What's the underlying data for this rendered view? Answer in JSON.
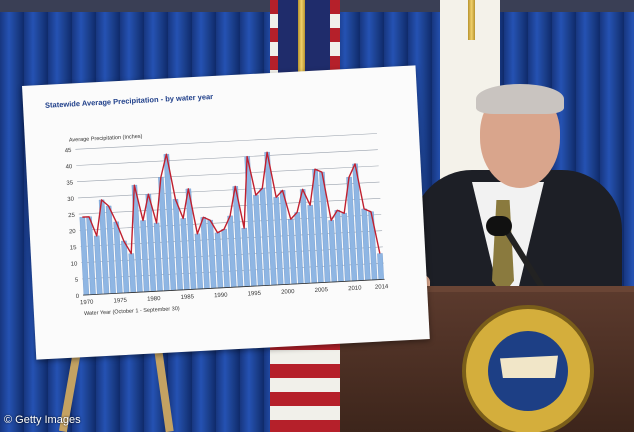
{
  "colors": {
    "curtain": "#1f4aa8",
    "bar_fill": "#8fb6e3",
    "line_stroke": "#c0202f",
    "title_color": "#1f3f8a"
  },
  "chart_data": {
    "type": "bar",
    "title": "Statewide Average Precipitation - by water year",
    "ylabel": "Average Precipitation (Inches)",
    "xlabel": "Water Year (October 1 - September 30)",
    "ylim": [
      0,
      45
    ],
    "yticks": [
      "0",
      "5",
      "10",
      "15",
      "20",
      "25",
      "30",
      "35",
      "40",
      "45"
    ],
    "xticks": [
      "1970",
      "1975",
      "1980",
      "1985",
      "1990",
      "1995",
      "2000",
      "2005",
      "2010",
      "2014"
    ],
    "categories": [
      1970,
      1971,
      1972,
      1973,
      1974,
      1975,
      1976,
      1977,
      1978,
      1979,
      1980,
      1981,
      1982,
      1983,
      1984,
      1985,
      1986,
      1987,
      1988,
      1989,
      1990,
      1991,
      1992,
      1993,
      1994,
      1995,
      1996,
      1997,
      1998,
      1999,
      2000,
      2001,
      2002,
      2003,
      2004,
      2005,
      2006,
      2007,
      2008,
      2009,
      2010,
      2011,
      2012,
      2013,
      2014
    ],
    "values": [
      24,
      24,
      18,
      29,
      27,
      22,
      16,
      12,
      33,
      22,
      30,
      21,
      35,
      42,
      28,
      22,
      31,
      17,
      22,
      21,
      17,
      18,
      22,
      31,
      18,
      40,
      28,
      30,
      41,
      27,
      29,
      20,
      22,
      29,
      24,
      35,
      34,
      19,
      22,
      21,
      32,
      36,
      22,
      21,
      8
    ],
    "grid": true,
    "legend": "none"
  },
  "credit": "© Getty Images"
}
